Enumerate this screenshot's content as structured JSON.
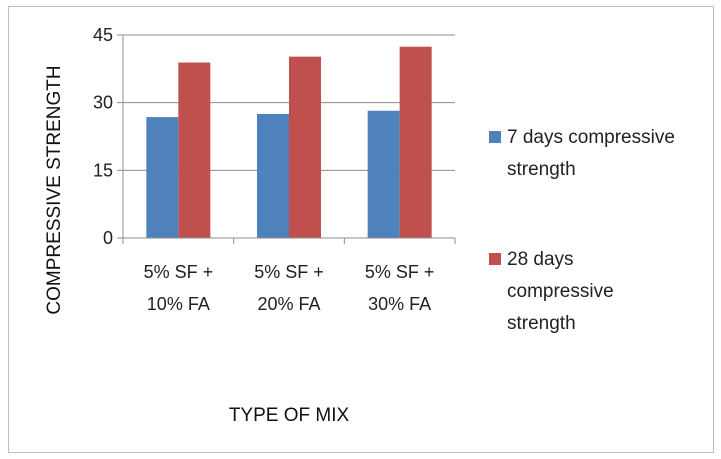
{
  "chart_data": {
    "type": "bar",
    "title": "",
    "xlabel": "TYPE OF MIX",
    "ylabel": "COMPRESSIVE STRENGTH",
    "categories": [
      [
        "5% SF +",
        "10% FA"
      ],
      [
        "5% SF +",
        "20% FA"
      ],
      [
        "5% SF +",
        "30% FA"
      ]
    ],
    "y_ticks": [
      "0",
      "15",
      "30",
      "45"
    ],
    "ylim": [
      0,
      45
    ],
    "grid": true,
    "legend_position": "right",
    "series": [
      {
        "name": "7 days compressive strength",
        "legend_lines": [
          "7 days compressive",
          "strength"
        ],
        "color": "#4f81bd",
        "values": [
          26.8,
          27.5,
          28.2
        ]
      },
      {
        "name": "28 days compressive strength",
        "legend_lines": [
          "28 days",
          "compressive",
          "strength"
        ],
        "color": "#c0504d",
        "values": [
          38.9,
          40.2,
          42.4
        ]
      }
    ]
  }
}
